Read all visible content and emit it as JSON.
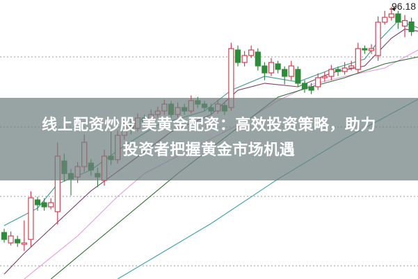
{
  "banner": {
    "line1": "线上配资炒股 美黄金配资：高效投资策略，助力",
    "line2": "投资者把握黄金市场机遇"
  },
  "chart_data": {
    "type": "candlestick",
    "title": "",
    "xlabel": "",
    "ylabel": "",
    "ylim": [
      76.58,
      96.68
    ],
    "grid": "horizontal-dotted",
    "grid_levels": [
      92.58,
      87.53,
      82.53,
      77.53
    ],
    "colors": {
      "up": "#d2404f",
      "down": "#2e8b3a",
      "grid": "#999999"
    },
    "high_annotation": {
      "label": "96.18",
      "value": 96.18,
      "index": 58
    },
    "candles": [
      [
        79.93,
        79.43,
        80.2,
        79.2
      ],
      [
        79.18,
        79.68,
        80.0,
        79.0
      ],
      [
        79.43,
        79.18,
        79.7,
        78.9
      ],
      [
        79.08,
        79.18,
        80.8,
        78.6
      ],
      [
        79.43,
        82.43,
        82.9,
        78.9
      ],
      [
        82.28,
        81.93,
        82.5,
        81.5
      ],
      [
        82.08,
        81.78,
        82.4,
        81.5
      ],
      [
        81.78,
        82.08,
        82.4,
        81.6
      ],
      [
        81.43,
        85.43,
        86.4,
        80.5
      ],
      [
        85.08,
        84.18,
        85.6,
        83.6
      ],
      [
        84.18,
        83.78,
        84.5,
        82.6
      ],
      [
        83.93,
        84.68,
        85.0,
        83.5
      ],
      [
        84.68,
        86.43,
        87.0,
        84.3
      ],
      [
        84.93,
        84.43,
        85.2,
        84.0
      ],
      [
        84.18,
        83.93,
        84.6,
        83.2
      ],
      [
        83.68,
        85.43,
        85.9,
        83.3
      ],
      [
        85.43,
        85.18,
        87.2,
        84.8
      ],
      [
        85.18,
        86.93,
        87.3,
        84.9
      ],
      [
        86.93,
        87.68,
        88.0,
        86.6
      ],
      [
        87.68,
        87.43,
        88.0,
        87.0
      ],
      [
        87.43,
        88.18,
        88.5,
        87.2
      ],
      [
        88.18,
        87.93,
        88.4,
        87.6
      ],
      [
        87.93,
        88.43,
        88.8,
        87.7
      ],
      [
        88.43,
        88.68,
        89.0,
        88.2
      ],
      [
        88.68,
        89.18,
        89.5,
        88.4
      ],
      [
        89.18,
        88.43,
        89.4,
        88.1
      ],
      [
        88.43,
        88.93,
        89.3,
        88.2
      ],
      [
        88.93,
        88.68,
        89.2,
        88.4
      ],
      [
        88.68,
        89.43,
        89.8,
        88.5
      ],
      [
        89.43,
        89.18,
        89.7,
        88.9
      ],
      [
        89.18,
        88.93,
        89.4,
        88.7
      ],
      [
        88.93,
        88.68,
        89.2,
        88.4
      ],
      [
        88.68,
        89.18,
        89.5,
        88.5
      ],
      [
        89.08,
        88.68,
        89.3,
        88.4
      ],
      [
        88.93,
        93.18,
        93.6,
        88.7
      ],
      [
        93.08,
        92.18,
        93.4,
        91.9
      ],
      [
        92.18,
        92.68,
        93.0,
        91.9
      ],
      [
        92.68,
        93.08,
        93.4,
        92.5
      ],
      [
        92.93,
        91.93,
        93.2,
        91.6
      ],
      [
        91.93,
        91.43,
        92.2,
        90.9
      ],
      [
        91.43,
        92.18,
        92.5,
        91.2
      ],
      [
        92.08,
        91.68,
        92.3,
        91.4
      ],
      [
        91.68,
        91.18,
        91.9,
        90.6
      ],
      [
        91.18,
        91.93,
        92.3,
        90.9
      ],
      [
        91.68,
        90.68,
        91.9,
        90.4
      ],
      [
        90.68,
        90.28,
        90.9,
        90.0
      ],
      [
        90.43,
        90.18,
        90.7,
        89.9
      ],
      [
        90.43,
        91.08,
        91.4,
        90.2
      ],
      [
        91.08,
        91.18,
        91.5,
        90.8
      ],
      [
        91.18,
        91.68,
        92.0,
        90.9
      ],
      [
        91.68,
        91.53,
        91.9,
        91.2
      ],
      [
        91.53,
        91.78,
        92.2,
        91.3
      ],
      [
        91.78,
        91.93,
        92.3,
        91.6
      ],
      [
        91.68,
        93.18,
        93.6,
        91.4
      ],
      [
        93.18,
        93.08,
        93.4,
        92.8
      ],
      [
        93.03,
        93.18,
        93.5,
        92.8
      ],
      [
        92.68,
        95.08,
        95.5,
        92.3
      ],
      [
        95.08,
        95.43,
        95.9,
        94.9
      ],
      [
        95.43,
        95.68,
        96.18,
        95.2
      ],
      [
        95.68,
        95.08,
        95.9,
        94.6
      ],
      [
        94.8,
        95.2,
        95.6,
        94.0
      ],
      [
        95.1,
        94.4,
        95.4,
        94.1
      ]
    ],
    "candle_fields": [
      "open",
      "close",
      "high",
      "low"
    ],
    "series": [
      {
        "color": "#3a9a8a",
        "points": [
          [
            0,
            80.43
          ],
          [
            5,
            81.68
          ],
          [
            8,
            83.43
          ],
          [
            13,
            84.43
          ],
          [
            18,
            86.18
          ],
          [
            23,
            87.68
          ],
          [
            30,
            88.68
          ],
          [
            34,
            90.18
          ],
          [
            39,
            91.18
          ],
          [
            44,
            90.78
          ],
          [
            49,
            91.68
          ],
          [
            54,
            92.43
          ],
          [
            56,
            93.68
          ],
          [
            59,
            95.18
          ],
          [
            62,
            94.68
          ]
        ]
      },
      {
        "color": "#7a3a6a",
        "points": [
          [
            0,
            76.93
          ],
          [
            3,
            78.43
          ],
          [
            8,
            80.68
          ],
          [
            13,
            82.93
          ],
          [
            18,
            84.68
          ],
          [
            25,
            87.18
          ],
          [
            31,
            88.43
          ],
          [
            35,
            90.18
          ],
          [
            39,
            90.68
          ],
          [
            44,
            90.43
          ],
          [
            49,
            91.43
          ],
          [
            54,
            91.93
          ],
          [
            58,
            93.93
          ],
          [
            60,
            94.58
          ],
          [
            62,
            94.43
          ]
        ]
      },
      {
        "color": "#e59ae0",
        "points": [
          [
            3,
            76.58
          ],
          [
            11,
            79.68
          ],
          [
            17,
            82.53
          ],
          [
            21,
            84.18
          ],
          [
            31,
            86.68
          ],
          [
            36,
            87.93
          ],
          [
            41,
            89.43
          ],
          [
            46,
            90.58
          ],
          [
            51,
            91.18
          ],
          [
            57,
            91.78
          ],
          [
            62,
            93.08
          ]
        ]
      },
      {
        "color": "#2f6e2f",
        "points": [
          [
            7,
            76.58
          ],
          [
            26,
            84.18
          ],
          [
            41,
            89.68
          ],
          [
            46,
            90.43
          ],
          [
            51,
            91.08
          ],
          [
            57,
            92.08
          ],
          [
            62,
            92.58
          ]
        ]
      },
      {
        "color": "#3aa0a8",
        "points": [
          [
            17,
            76.58
          ],
          [
            31,
            80.58
          ],
          [
            41,
            83.78
          ],
          [
            51,
            86.68
          ],
          [
            62,
            89.53
          ]
        ]
      }
    ]
  }
}
